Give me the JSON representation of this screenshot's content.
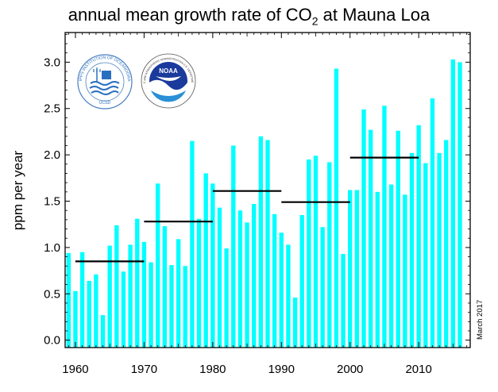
{
  "title_main": "annual mean growth rate of CO",
  "title_sub": "2",
  "title_end": " at Mauna Loa",
  "date_note": "March 2017",
  "logos": [
    {
      "name": "scripps-logo",
      "text": "SCRIPPS INSTITUTION OF OCEANOGRAPHY",
      "sub": "UCSD"
    },
    {
      "name": "noaa-logo",
      "text": "NOAA",
      "sub": "NATIONAL OCEANIC AND ATMOSPHERIC ADMINISTRATION  U.S. DEPARTMENT OF COMMERCE"
    }
  ],
  "colors": {
    "bar": "#00ffff",
    "decade_line": "#000000"
  },
  "chart_data": {
    "type": "bar",
    "title": "annual mean growth rate of CO2 at Mauna Loa",
    "ylabel": "ppm per year",
    "xlabel": "",
    "xlim": [
      1958.5,
      2017.5
    ],
    "ylim": [
      -0.08,
      3.32
    ],
    "x_ticks": [
      1960,
      1970,
      1980,
      1990,
      2000,
      2010
    ],
    "y_ticks": [
      0.0,
      0.5,
      1.0,
      1.5,
      2.0,
      2.5,
      3.0
    ],
    "y_tick_labels": [
      "0.0",
      "0.5",
      "1.0",
      "1.5",
      "2.0",
      "2.5",
      "3.0"
    ],
    "years": [
      1959,
      1960,
      1961,
      1962,
      1963,
      1964,
      1965,
      1966,
      1967,
      1968,
      1969,
      1970,
      1971,
      1972,
      1973,
      1974,
      1975,
      1976,
      1977,
      1978,
      1979,
      1980,
      1981,
      1982,
      1983,
      1984,
      1985,
      1986,
      1987,
      1988,
      1989,
      1990,
      1991,
      1992,
      1993,
      1994,
      1995,
      1996,
      1997,
      1998,
      1999,
      2000,
      2001,
      2002,
      2003,
      2004,
      2005,
      2006,
      2007,
      2008,
      2009,
      2010,
      2011,
      2012,
      2013,
      2014,
      2015,
      2016
    ],
    "values": [
      0.94,
      0.53,
      0.95,
      0.64,
      0.71,
      0.27,
      1.02,
      1.24,
      0.74,
      1.03,
      1.31,
      1.06,
      0.84,
      1.69,
      1.23,
      0.81,
      1.09,
      0.8,
      2.15,
      1.31,
      1.8,
      1.69,
      1.43,
      0.99,
      2.1,
      1.4,
      1.27,
      1.47,
      2.2,
      2.16,
      1.36,
      1.16,
      1.03,
      0.46,
      1.35,
      1.95,
      1.99,
      1.22,
      1.92,
      2.93,
      0.93,
      1.62,
      1.62,
      2.49,
      2.27,
      1.6,
      2.53,
      1.68,
      2.26,
      1.57,
      2.02,
      2.32,
      1.91,
      2.61,
      2.02,
      2.16,
      3.03,
      3.0
    ],
    "decadal_means": [
      {
        "start": 1960,
        "end": 1970,
        "value": 0.85
      },
      {
        "start": 1970,
        "end": 1980,
        "value": 1.28
      },
      {
        "start": 1980,
        "end": 1990,
        "value": 1.61
      },
      {
        "start": 1990,
        "end": 2000,
        "value": 1.49
      },
      {
        "start": 2000,
        "end": 2010,
        "value": 1.97
      }
    ]
  }
}
